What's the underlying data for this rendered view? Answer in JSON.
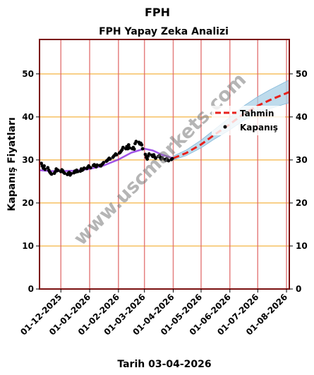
{
  "chart_data": {
    "type": "line",
    "title": "FPH",
    "subtitle": "FPH Yapay Zeka Analizi",
    "xlabel": "Tarih 03-04-2026",
    "ylabel": "Kapanış Fiyatları",
    "ylim": [
      0,
      58
    ],
    "xlim": [
      "2025-11-08",
      "2026-08-04"
    ],
    "yticks": [
      0,
      10,
      20,
      30,
      40,
      50
    ],
    "xticks": [
      "2025-12-01",
      "2026-01-01",
      "2026-02-01",
      "2026-03-01",
      "2026-04-01",
      "2026-05-01",
      "2026-06-01",
      "2026-07-01",
      "2026-08-01"
    ],
    "xtick_labels": [
      "01-12-2025",
      "01-01-2026",
      "01-02-2026",
      "01-03-2026",
      "01-04-2026",
      "01-05-2026",
      "01-06-2026",
      "01-07-2026",
      "01-08-2026"
    ],
    "watermark": "www.uscmarkets.com",
    "legend": {
      "position": "right",
      "entries": [
        "Tahmin",
        "Kapanış"
      ]
    },
    "colors": {
      "prediction": "#e8211c",
      "band": "#a8cfe6",
      "smooth": "#8a2be2",
      "closing": "#000000",
      "hgrid": "#f6c162",
      "vgrid": "#e06a6a",
      "frame": "#7a1010"
    },
    "series": [
      {
        "name": "Kapanış",
        "kind": "scatter",
        "x": [
          "2025-11-10",
          "2025-11-11",
          "2025-11-12",
          "2025-11-13",
          "2025-11-14",
          "2025-11-17",
          "2025-11-18",
          "2025-11-19",
          "2025-11-20",
          "2025-11-21",
          "2025-11-24",
          "2025-11-25",
          "2025-11-26",
          "2025-11-27",
          "2025-11-28",
          "2025-12-01",
          "2025-12-02",
          "2025-12-03",
          "2025-12-04",
          "2025-12-05",
          "2025-12-08",
          "2025-12-09",
          "2025-12-10",
          "2025-12-11",
          "2025-12-12",
          "2025-12-15",
          "2025-12-16",
          "2025-12-17",
          "2025-12-18",
          "2025-12-19",
          "2025-12-22",
          "2025-12-23",
          "2025-12-24",
          "2025-12-25",
          "2025-12-26",
          "2025-12-29",
          "2025-12-30",
          "2025-12-31",
          "2026-01-02",
          "2026-01-05",
          "2026-01-06",
          "2026-01-07",
          "2026-01-08",
          "2026-01-09",
          "2026-01-12",
          "2026-01-13",
          "2026-01-14",
          "2026-01-15",
          "2026-01-16",
          "2026-01-19",
          "2026-01-20",
          "2026-01-21",
          "2026-01-22",
          "2026-01-23",
          "2026-01-26",
          "2026-01-27",
          "2026-01-28",
          "2026-01-29",
          "2026-01-30",
          "2026-02-02",
          "2026-02-03",
          "2026-02-04",
          "2026-02-05",
          "2026-02-06",
          "2026-02-09",
          "2026-02-10",
          "2026-02-11",
          "2026-02-12",
          "2026-02-13",
          "2026-02-16",
          "2026-02-17",
          "2026-02-18",
          "2026-02-19",
          "2026-02-20",
          "2026-02-23",
          "2026-02-24",
          "2026-02-25",
          "2026-02-26",
          "2026-02-27",
          "2026-03-02",
          "2026-03-03",
          "2026-03-04",
          "2026-03-05",
          "2026-03-06",
          "2026-03-09",
          "2026-03-10",
          "2026-03-11",
          "2026-03-12",
          "2026-03-13",
          "2026-03-16",
          "2026-03-17",
          "2026-03-18",
          "2026-03-19",
          "2026-03-20",
          "2026-03-23",
          "2026-03-24",
          "2026-03-25",
          "2026-03-26",
          "2026-03-27",
          "2026-03-30",
          "2026-03-31"
        ],
        "y": [
          29.2,
          28.6,
          28.1,
          28.6,
          27.8,
          28.2,
          27.6,
          27.2,
          26.9,
          26.7,
          26.9,
          27.3,
          27.9,
          27.5,
          27.6,
          27.3,
          27.7,
          27.5,
          27.1,
          26.9,
          26.6,
          26.9,
          27.1,
          26.5,
          26.8,
          27.0,
          27.4,
          27.2,
          27.6,
          27.3,
          27.4,
          27.9,
          27.6,
          27.8,
          28.1,
          28.0,
          28.3,
          28.6,
          28.2,
          28.7,
          28.9,
          28.6,
          28.4,
          28.8,
          28.7,
          28.6,
          28.9,
          29.1,
          29.4,
          29.7,
          29.9,
          30.1,
          30.4,
          30.2,
          30.6,
          30.9,
          31.1,
          31.4,
          31.2,
          31.6,
          31.8,
          32.1,
          32.4,
          32.9,
          32.6,
          33.1,
          32.6,
          33.5,
          32.8,
          32.6,
          32.9,
          32.5,
          33.8,
          34.3,
          34.1,
          33.7,
          33.9,
          33.5,
          32.6,
          31.3,
          30.6,
          30.2,
          30.9,
          31.4,
          31.1,
          30.8,
          31.2,
          30.7,
          30.4,
          30.8,
          31.0,
          30.6,
          30.2,
          30.5,
          30.1,
          29.9,
          30.3,
          30.0,
          29.8,
          30.1,
          30.3
        ]
      },
      {
        "name": "Tahmin",
        "kind": "dashed-line",
        "x": [
          "2026-04-01",
          "2026-04-15",
          "2026-05-01",
          "2026-05-15",
          "2026-06-01",
          "2026-06-15",
          "2026-07-01",
          "2026-07-15",
          "2026-08-04"
        ],
        "y": [
          30.4,
          31.6,
          33.6,
          35.8,
          38.3,
          40.6,
          42.6,
          44.0,
          45.8
        ]
      },
      {
        "kind": "band",
        "x": [
          "2026-04-01",
          "2026-04-15",
          "2026-05-01",
          "2026-05-15",
          "2026-06-01",
          "2026-06-15",
          "2026-07-01",
          "2026-07-15",
          "2026-08-04"
        ],
        "low": [
          30.0,
          31.0,
          32.8,
          34.8,
          37.0,
          39.1,
          40.8,
          42.0,
          43.3
        ],
        "high": [
          30.9,
          32.3,
          34.6,
          37.0,
          39.9,
          42.4,
          44.7,
          46.4,
          48.6
        ]
      },
      {
        "kind": "smooth-line",
        "x": [
          "2025-11-08",
          "2025-11-20",
          "2025-12-01",
          "2025-12-15",
          "2026-01-01",
          "2026-01-15",
          "2026-02-01",
          "2026-02-15",
          "2026-03-01",
          "2026-03-10",
          "2026-03-20",
          "2026-04-01"
        ],
        "y": [
          27.6,
          27.4,
          27.4,
          27.5,
          27.9,
          28.6,
          30.1,
          31.7,
          32.6,
          32.2,
          31.2,
          30.4
        ]
      }
    ]
  }
}
